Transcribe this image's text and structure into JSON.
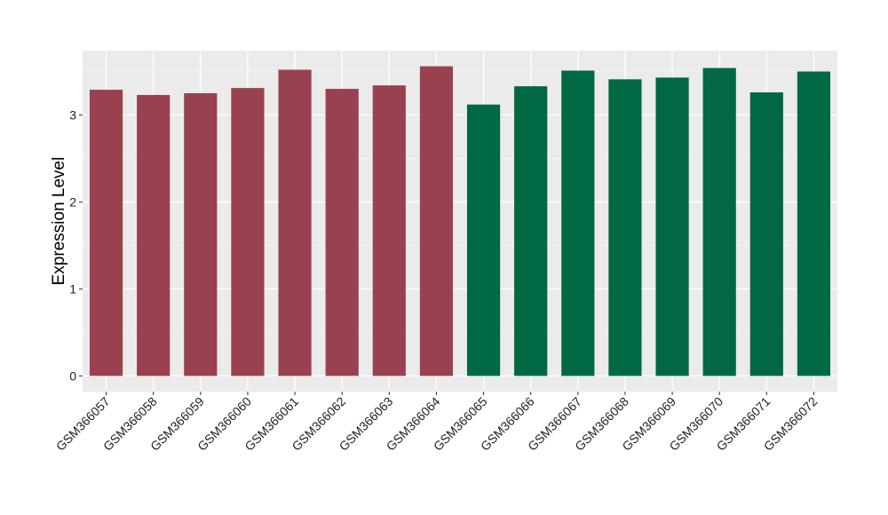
{
  "chart_data": {
    "type": "bar",
    "categories": [
      "GSM366057",
      "GSM366058",
      "GSM366059",
      "GSM366060",
      "GSM366061",
      "GSM366062",
      "GSM366063",
      "GSM366064",
      "GSM366065",
      "GSM366066",
      "GSM366067",
      "GSM366068",
      "GSM366069",
      "GSM366070",
      "GSM366071",
      "GSM366072"
    ],
    "values": [
      3.29,
      3.23,
      3.25,
      3.31,
      3.52,
      3.3,
      3.34,
      3.56,
      3.12,
      3.33,
      3.51,
      3.41,
      3.43,
      3.54,
      3.26,
      3.5
    ],
    "groups": [
      1,
      1,
      1,
      1,
      1,
      1,
      1,
      1,
      2,
      2,
      2,
      2,
      2,
      2,
      2,
      2
    ],
    "group_colors": {
      "1": "#9a414f",
      "2": "#006843"
    },
    "xlabel": "",
    "ylabel": "Expression Level",
    "ylim": [
      -0.18,
      3.74
    ],
    "yticks": [
      0,
      1,
      2,
      3
    ],
    "grid": true,
    "panel_background": "#ebebeb",
    "legend": "none"
  }
}
